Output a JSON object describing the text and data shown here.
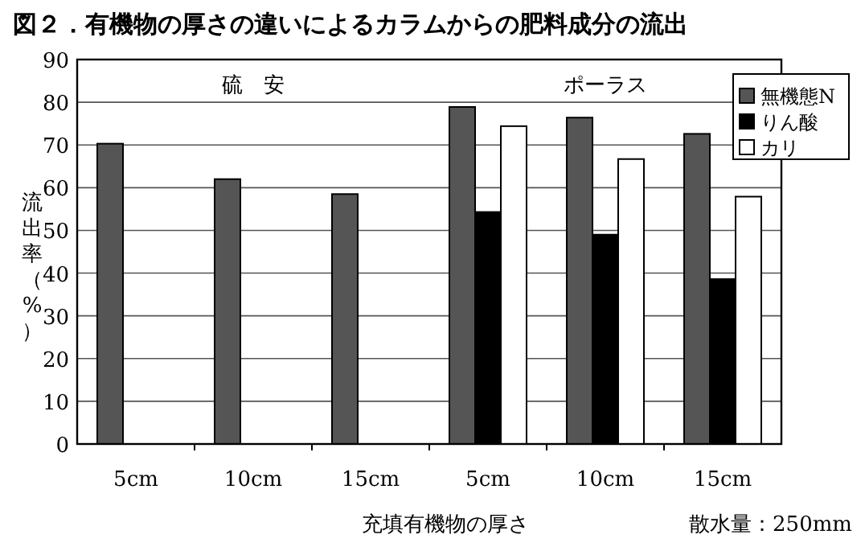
{
  "chart_data": {
    "type": "bar",
    "title": "図２．有機物の厚さの違いによるカラムからの肥料成分の流出",
    "xlabel": "充填有機物の厚さ",
    "ylabel": "流出率（%）",
    "categories": [
      "5cm",
      "10cm",
      "15cm",
      "5cm",
      "10cm",
      "15cm"
    ],
    "series": [
      {
        "name": "無機態N",
        "color": "#555555",
        "values": [
          70.3,
          62.0,
          58.5,
          78.9,
          76.4,
          72.6
        ]
      },
      {
        "name": "りん酸",
        "color": "#000000",
        "values": [
          null,
          null,
          null,
          54.3,
          49.0,
          38.6
        ]
      },
      {
        "name": "カリ",
        "color": "#ffffff",
        "values": [
          null,
          null,
          null,
          74.4,
          66.7,
          57.9
        ]
      }
    ],
    "ylim": [
      0,
      90
    ],
    "yticks": [
      0,
      10,
      20,
      30,
      40,
      50,
      60,
      70,
      80,
      90
    ],
    "grid": "y",
    "legend": "top right",
    "annotations": [
      "硫　安",
      "ポーラス",
      "散水量：250mm"
    ]
  }
}
